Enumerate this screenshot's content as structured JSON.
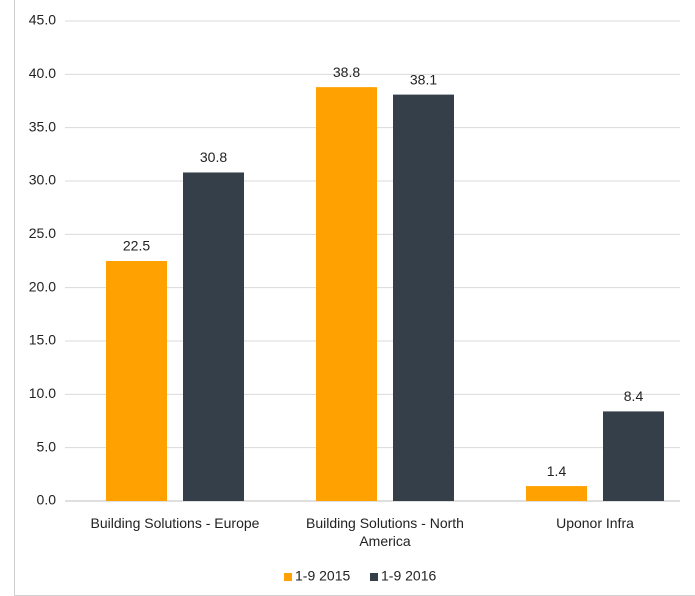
{
  "chart_data": {
    "type": "bar",
    "categories": [
      "Building Solutions - Europe",
      "Building Solutions - North America",
      "Uponor Infra"
    ],
    "series": [
      {
        "name": "1-9 2015",
        "color": "#ffa100",
        "values": [
          22.5,
          38.8,
          1.4
        ]
      },
      {
        "name": "1-9 2016",
        "color": "#353f49",
        "values": [
          30.8,
          38.1,
          8.4
        ]
      }
    ],
    "ylim": [
      0,
      45
    ],
    "yticks": [
      {
        "value": 0,
        "label": "0.0"
      },
      {
        "value": 5,
        "label": "5.0"
      },
      {
        "value": 10,
        "label": "10.0"
      },
      {
        "value": 15,
        "label": "15.0"
      },
      {
        "value": 20,
        "label": "20.0"
      },
      {
        "value": 25,
        "label": "25.0"
      },
      {
        "value": 30,
        "label": "30.0"
      },
      {
        "value": 35,
        "label": "35.0"
      },
      {
        "value": 40,
        "label": "40.0"
      },
      {
        "value": 45,
        "label": "45.0"
      }
    ],
    "grid": true,
    "legend": "bottom"
  }
}
